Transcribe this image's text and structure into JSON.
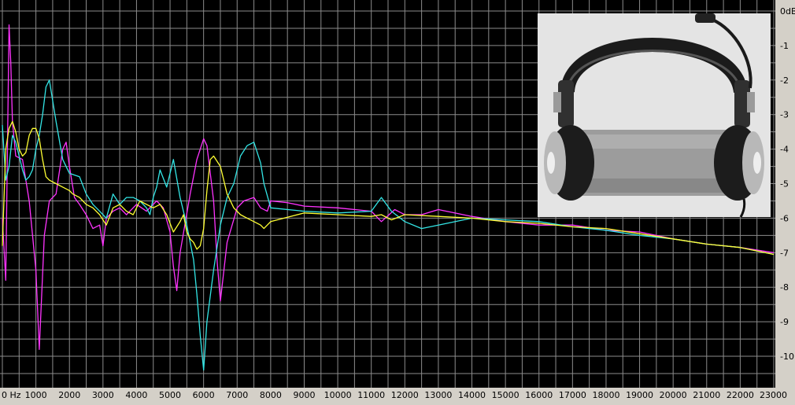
{
  "chart_data": {
    "type": "line",
    "title": "",
    "xlabel": "",
    "ylabel": "",
    "background": "#000000",
    "grid": true,
    "grid_color": "#8c8c8c",
    "xlim": [
      0,
      23000
    ],
    "ylim": [
      -10.5,
      0
    ],
    "x_ticks": [
      0,
      1000,
      2000,
      3000,
      4000,
      5000,
      6000,
      7000,
      8000,
      9000,
      10000,
      11000,
      12000,
      13000,
      14000,
      15000,
      16000,
      17000,
      18000,
      19000,
      20000,
      21000,
      22000,
      23000
    ],
    "x_tick_labels": [
      "0 Hz",
      "1000",
      "2000",
      "3000",
      "4000",
      "5000",
      "6000",
      "7000",
      "8000",
      "9000",
      "10000",
      "11000",
      "12000",
      "13000",
      "14000",
      "15000",
      "16000",
      "17000",
      "18000",
      "19000",
      "20000",
      "21000",
      "22000",
      "23000"
    ],
    "y_ticks": [
      0,
      -1,
      -2,
      -3,
      -4,
      -5,
      -6,
      -7,
      -8,
      -9,
      -10
    ],
    "y_tick_labels": [
      "0dB",
      "-1",
      "-2",
      "-3",
      "-4",
      "-5",
      "-6",
      "-7",
      "-8",
      "-9",
      "-10"
    ],
    "series": [
      {
        "color": "#ff33ff",
        "x": [
          0,
          100,
          200,
          250,
          300,
          400,
          600,
          800,
          1000,
          1100,
          1250,
          1400,
          1600,
          1800,
          1900,
          2000,
          2150,
          2300,
          2500,
          2700,
          2900,
          3000,
          3100,
          3300,
          3500,
          3700,
          4000,
          4300,
          4600,
          4800,
          5000,
          5100,
          5200,
          5300,
          5600,
          5800,
          6000,
          6100,
          6300,
          6400,
          6500,
          6700,
          7000,
          7200,
          7500,
          7700,
          7900,
          8000,
          8500,
          9000,
          10000,
          11000,
          11300,
          11700,
          12000,
          12500,
          13000,
          14000,
          15000,
          16000,
          17000,
          18000,
          19000,
          20000,
          21000,
          22000,
          23000
        ],
        "y": [
          -6,
          -7.8,
          -0.4,
          -1.5,
          -3.2,
          -4.2,
          -4.3,
          -5.5,
          -7.5,
          -9.8,
          -6.5,
          -5.5,
          -5.3,
          -4,
          -3.8,
          -4.5,
          -5.4,
          -5.6,
          -5.9,
          -6.3,
          -6.2,
          -6.8,
          -6,
          -5.8,
          -5.7,
          -5.9,
          -5.6,
          -5.8,
          -5.5,
          -5.7,
          -6.4,
          -7.4,
          -8.1,
          -7,
          -5.3,
          -4.3,
          -3.7,
          -3.9,
          -5.5,
          -7.2,
          -8.4,
          -6.7,
          -5.7,
          -5.5,
          -5.4,
          -5.7,
          -5.8,
          -5.5,
          -5.55,
          -5.65,
          -5.7,
          -5.8,
          -6.1,
          -5.75,
          -5.9,
          -5.9,
          -5.75,
          -5.95,
          -6.1,
          -6.2,
          -6.2,
          -6.35,
          -6.4,
          -6.6,
          -6.75,
          -6.85,
          -7
        ]
      },
      {
        "color": "#33e6e6",
        "x": [
          0,
          100,
          200,
          300,
          400,
          500,
          600,
          700,
          800,
          900,
          1000,
          1100,
          1200,
          1300,
          1400,
          1600,
          1800,
          2000,
          2300,
          2500,
          2700,
          2900,
          3100,
          3300,
          3500,
          3700,
          3900,
          4100,
          4300,
          4400,
          4500,
          4600,
          4700,
          4900,
          5100,
          5300,
          5500,
          5700,
          5800,
          5900,
          6000,
          6100,
          6300,
          6500,
          6700,
          6900,
          7100,
          7300,
          7500,
          7700,
          7800,
          8000,
          9000,
          10000,
          11000,
          11300,
          11600,
          12000,
          12500,
          13000,
          14000,
          15000,
          16000,
          17000,
          18000,
          19000,
          20000,
          21000,
          22000,
          23000
        ],
        "y": [
          -3.3,
          -4.9,
          -4.5,
          -3.6,
          -3.8,
          -4.2,
          -4.6,
          -4.9,
          -4.8,
          -4.6,
          -4.0,
          -3.6,
          -3.0,
          -2.2,
          -2.0,
          -3.2,
          -4.3,
          -4.7,
          -4.8,
          -5.3,
          -5.6,
          -5.8,
          -6.0,
          -5.3,
          -5.6,
          -5.4,
          -5.4,
          -5.5,
          -5.7,
          -5.9,
          -5.4,
          -5.1,
          -4.6,
          -5.1,
          -4.3,
          -5.4,
          -6.2,
          -7.2,
          -8.2,
          -9.4,
          -10.4,
          -9.0,
          -7.5,
          -6.2,
          -5.4,
          -5.0,
          -4.2,
          -3.9,
          -3.8,
          -4.4,
          -5.0,
          -5.7,
          -5.8,
          -5.85,
          -5.8,
          -5.4,
          -5.8,
          -6.1,
          -6.3,
          -6.2,
          -6.0,
          -6.05,
          -6.1,
          -6.25,
          -6.35,
          -6.5,
          -6.6,
          -6.75,
          -6.85,
          -7.05
        ]
      },
      {
        "color": "#ffff33",
        "x": [
          0,
          100,
          200,
          300,
          400,
          500,
          600,
          700,
          800,
          900,
          1000,
          1100,
          1200,
          1300,
          1400,
          1600,
          1800,
          2000,
          2100,
          2300,
          2500,
          2700,
          2900,
          3100,
          3300,
          3500,
          3700,
          3900,
          4100,
          4300,
          4500,
          4700,
          4900,
          5100,
          5300,
          5400,
          5500,
          5600,
          5700,
          5800,
          5900,
          6000,
          6100,
          6200,
          6300,
          6500,
          6700,
          6900,
          7100,
          7300,
          7500,
          7700,
          7800,
          8000,
          9000,
          10000,
          11000,
          11300,
          11600,
          12000,
          13000,
          14000,
          15000,
          16000,
          17000,
          18000,
          19000,
          20000,
          21000,
          22000,
          23000
        ],
        "y": [
          -6.8,
          -4.0,
          -3.4,
          -3.2,
          -3.5,
          -4.0,
          -4.2,
          -4.1,
          -3.6,
          -3.4,
          -3.4,
          -3.7,
          -4.3,
          -4.8,
          -4.9,
          -5.0,
          -5.1,
          -5.2,
          -5.3,
          -5.4,
          -5.6,
          -5.7,
          -5.9,
          -6.2,
          -5.7,
          -5.6,
          -5.8,
          -5.9,
          -5.5,
          -5.6,
          -5.7,
          -5.6,
          -5.9,
          -6.4,
          -6.1,
          -5.9,
          -6.4,
          -6.6,
          -6.7,
          -6.9,
          -6.8,
          -6.3,
          -5.2,
          -4.3,
          -4.2,
          -4.5,
          -5.3,
          -5.7,
          -5.9,
          -6.0,
          -6.1,
          -6.2,
          -6.3,
          -6.1,
          -5.85,
          -5.9,
          -5.95,
          -5.9,
          -6.05,
          -5.9,
          -5.95,
          -6.0,
          -6.1,
          -6.15,
          -6.25,
          -6.3,
          -6.45,
          -6.6,
          -6.75,
          -6.85,
          -7.05
        ]
      }
    ]
  }
}
